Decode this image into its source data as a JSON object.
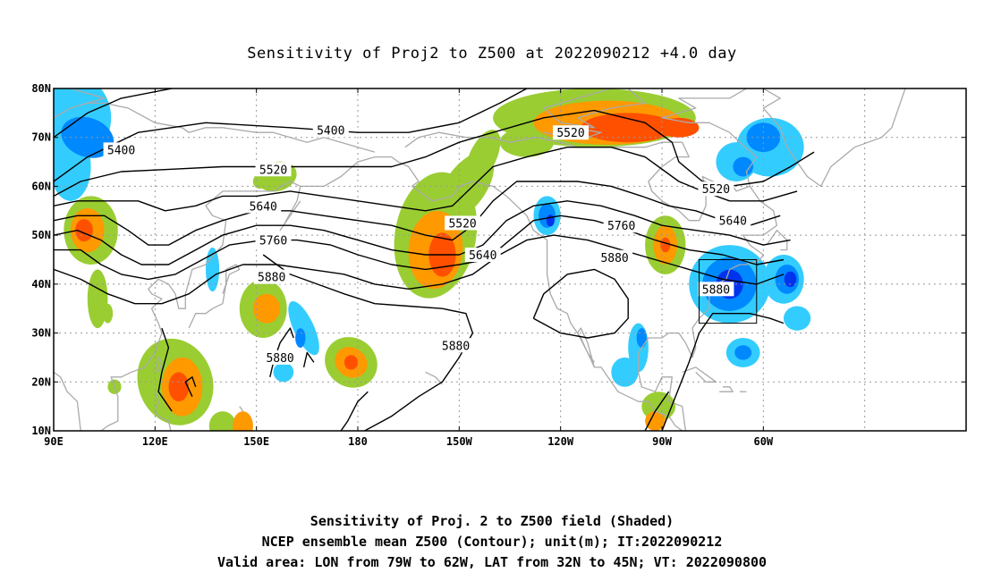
{
  "title": "Sensitivity of Proj2 to Z500 at 2022090212 +4.0 day",
  "map": {
    "lat_ticks": [
      "80N",
      "70N",
      "60N",
      "50N",
      "40N",
      "30N",
      "20N",
      "10N"
    ],
    "lon_ticks": [
      "90E",
      "120E",
      "150E",
      "180",
      "150W",
      "120W",
      "90W",
      "60W"
    ],
    "contour_labels": [
      {
        "text": "5400",
        "lon": 110,
        "lat": 67.5
      },
      {
        "text": "5400",
        "lon": 172,
        "lat": 71.5
      },
      {
        "text": "5520",
        "lon": 155,
        "lat": 63.5
      },
      {
        "text": "5520",
        "lon": -149,
        "lat": 52.5
      },
      {
        "text": "5520",
        "lon": -117,
        "lat": 71
      },
      {
        "text": "5520",
        "lon": -74,
        "lat": 59.5
      },
      {
        "text": "5640",
        "lon": 152,
        "lat": 56
      },
      {
        "text": "5640",
        "lon": -143,
        "lat": 46
      },
      {
        "text": "5640",
        "lon": -69,
        "lat": 53
      },
      {
        "text": "5760",
        "lon": 155,
        "lat": 49
      },
      {
        "text": "5760",
        "lon": -102,
        "lat": 52
      },
      {
        "text": "5880",
        "lon": 154.5,
        "lat": 41.5
      },
      {
        "text": "5880",
        "lon": -104,
        "lat": 45.5
      },
      {
        "text": "5880",
        "lon": -151,
        "lat": 27.5
      },
      {
        "text": "5880",
        "lon": 157,
        "lat": 25
      },
      {
        "text": "5880",
        "lon": -74,
        "lat": 39
      }
    ],
    "valid_area": {
      "lon_from": -79,
      "lon_to": -62,
      "lat_from": 32,
      "lat_to": 45
    },
    "colors": {
      "pos1": "#9ACD32",
      "pos2": "#FF9900",
      "pos3": "#FF5000",
      "neg1": "#33CCFF",
      "neg2": "#0088FF",
      "neg3": "#0033EE",
      "coast": "#AAAAAA",
      "contour": "#000000"
    }
  },
  "footer": {
    "line1": "Sensitivity of Proj. 2 to Z500 field (Shaded)",
    "line2": "NCEP ensemble mean Z500 (Contour); unit(m); IT:2022090212",
    "line3": "Valid area: LON from 79W to 62W, LAT from 32N to 45N; VT: 2022090800"
  }
}
